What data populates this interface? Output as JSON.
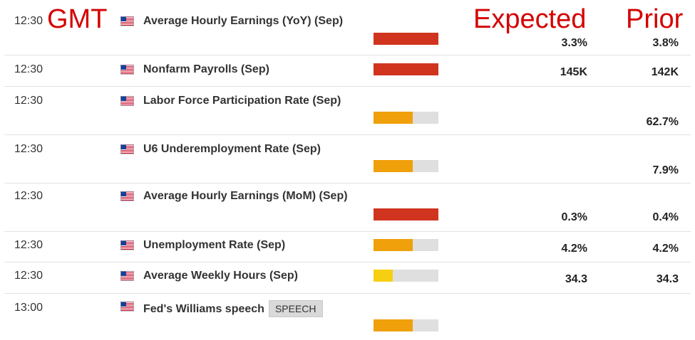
{
  "headers": {
    "gmt": "GMT",
    "expected": "Expected",
    "prior": "Prior"
  },
  "colors": {
    "high": "#d0341e",
    "medium": "#f0a00a",
    "low": "#f7cf12",
    "track": "#dfdfdf",
    "header_red": "#d40000"
  },
  "events": [
    {
      "time": "12:30",
      "flag": "us-flag-icon",
      "event": "Average Hourly Earnings (YoY) (Sep)",
      "badge": "",
      "impact": "high",
      "impact_fill": 1.0,
      "expected": "3.3%",
      "prior": "3.8%"
    },
    {
      "time": "12:30",
      "flag": "us-flag-icon",
      "event": "Nonfarm Payrolls (Sep)",
      "badge": "",
      "impact": "high",
      "impact_fill": 1.0,
      "expected": "145K",
      "prior": "142K"
    },
    {
      "time": "12:30",
      "flag": "us-flag-icon",
      "event": "Labor Force Participation Rate (Sep)",
      "badge": "",
      "impact": "medium",
      "impact_fill": 0.6,
      "expected": "",
      "prior": "62.7%"
    },
    {
      "time": "12:30",
      "flag": "us-flag-icon",
      "event": "U6 Underemployment Rate (Sep)",
      "badge": "",
      "impact": "medium",
      "impact_fill": 0.6,
      "expected": "",
      "prior": "7.9%"
    },
    {
      "time": "12:30",
      "flag": "us-flag-icon",
      "event": "Average Hourly Earnings (MoM) (Sep)",
      "badge": "",
      "impact": "high",
      "impact_fill": 1.0,
      "expected": "0.3%",
      "prior": "0.4%"
    },
    {
      "time": "12:30",
      "flag": "us-flag-icon",
      "event": "Unemployment Rate (Sep)",
      "badge": "",
      "impact": "medium",
      "impact_fill": 0.6,
      "expected": "4.2%",
      "prior": "4.2%"
    },
    {
      "time": "12:30",
      "flag": "us-flag-icon",
      "event": "Average Weekly Hours (Sep)",
      "badge": "",
      "impact": "low",
      "impact_fill": 0.3,
      "expected": "34.3",
      "prior": "34.3"
    },
    {
      "time": "13:00",
      "flag": "us-flag-icon",
      "event": "Fed's Williams speech",
      "badge": "SPEECH",
      "impact": "medium",
      "impact_fill": 0.6,
      "expected": "",
      "prior": ""
    }
  ]
}
